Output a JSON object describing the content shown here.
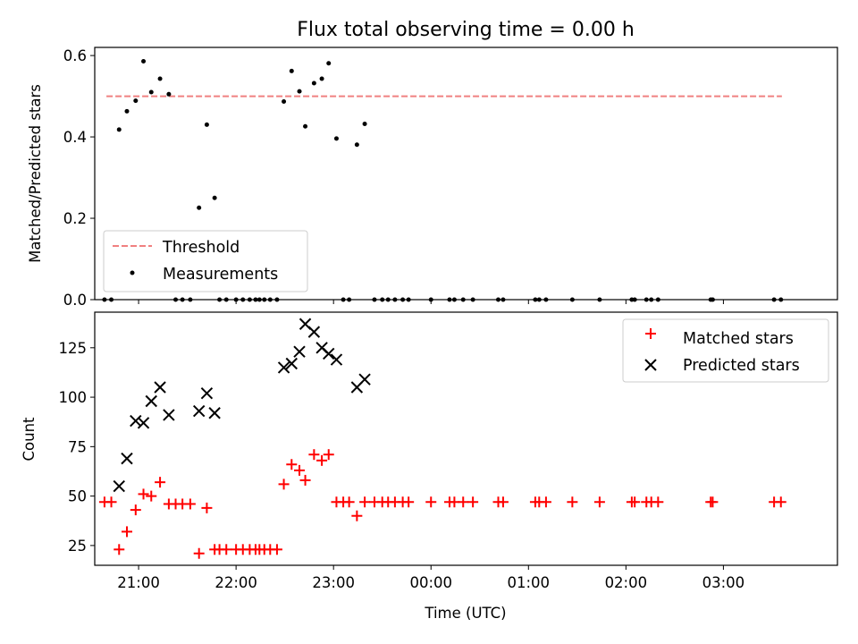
{
  "chart_data": [
    {
      "type": "scatter",
      "title": "Flux total observing time = 0.00 h",
      "xlabel": "",
      "ylabel": "Matched/Predicted stars",
      "ylim": [
        0,
        0.62
      ],
      "yticks": [
        "0.0",
        "0.2",
        "0.4",
        "0.6"
      ],
      "ytick_values": [
        0,
        0.2,
        0.4,
        0.6
      ],
      "xlim": [
        -3.45,
        4.17
      ],
      "xticks": [
        -3,
        -2,
        -1,
        0,
        1,
        2,
        3
      ],
      "grid": false,
      "legend": {
        "placement": "lower-left"
      },
      "threshold": {
        "name": "Threshold",
        "value": 0.5,
        "x_range": [
          -3.33,
          3.6
        ],
        "color": "#f08080"
      },
      "measurements": {
        "name": "Measurements",
        "color": "#000000",
        "x": [
          -3.35,
          -3.28,
          -3.2,
          -3.12,
          -3.03,
          -2.95,
          -2.87,
          -2.78,
          -2.69,
          -2.62,
          -2.55,
          -2.47,
          -2.38,
          -2.3,
          -2.22,
          -2.17,
          -2.1,
          -2.0,
          -1.93,
          -1.86,
          -1.8,
          -1.76,
          -1.71,
          -1.65,
          -1.58,
          -1.51,
          -1.43,
          -1.35,
          -1.29,
          -1.2,
          -1.12,
          -1.05,
          -0.97,
          -0.9,
          -0.84,
          -0.76,
          -0.68,
          -0.58,
          -0.5,
          -0.44,
          -0.37,
          -0.29,
          -0.23,
          0.0,
          0.19,
          0.24,
          0.33,
          0.43,
          0.69,
          0.74,
          1.07,
          1.11,
          1.18,
          1.45,
          1.73,
          2.06,
          2.09,
          2.21,
          2.26,
          2.33,
          2.87,
          2.89,
          3.52,
          3.59
        ],
        "y": [
          0,
          0,
          0.418,
          0.463,
          0.489,
          0.586,
          0.51,
          0.543,
          0.505,
          0,
          0,
          0,
          0.226,
          0.43,
          0.25,
          0,
          0,
          0,
          0,
          0,
          0,
          0,
          0,
          0,
          0,
          0.487,
          0.562,
          0.512,
          0.426,
          0.532,
          0.543,
          0.581,
          0.396,
          0,
          0,
          0.381,
          0.432,
          0,
          0,
          0,
          0,
          0,
          0,
          0,
          0,
          0,
          0,
          0,
          0,
          0,
          0,
          0,
          0,
          0,
          0,
          0,
          0,
          0,
          0,
          0,
          0,
          0,
          0,
          0
        ]
      }
    },
    {
      "type": "scatter",
      "title": "",
      "xlabel": "Time (UTC)",
      "ylabel": "Count",
      "ylim": [
        15,
        143
      ],
      "yticks": [
        "25",
        "50",
        "75",
        "100",
        "125"
      ],
      "ytick_values": [
        25,
        50,
        75,
        100,
        125
      ],
      "xlim": [
        -3.45,
        4.17
      ],
      "xticks": [
        -3,
        -2,
        -1,
        0,
        1,
        2,
        3
      ],
      "xtick_labels": [
        "21:00",
        "22:00",
        "23:00",
        "00:00",
        "01:00",
        "02:00",
        "03:00"
      ],
      "grid": false,
      "legend": {
        "placement": "top-right"
      },
      "series": [
        {
          "name": "Matched stars",
          "marker": "plus",
          "color": "#ff0000",
          "x": [
            -3.35,
            -3.28,
            -3.2,
            -3.12,
            -3.03,
            -2.95,
            -2.87,
            -2.78,
            -2.69,
            -2.62,
            -2.55,
            -2.47,
            -2.38,
            -2.3,
            -2.22,
            -2.17,
            -2.1,
            -2.0,
            -1.93,
            -1.86,
            -1.8,
            -1.76,
            -1.71,
            -1.65,
            -1.58,
            -1.51,
            -1.43,
            -1.35,
            -1.29,
            -1.2,
            -1.12,
            -1.05,
            -0.97,
            -0.9,
            -0.84,
            -0.76,
            -0.68,
            -0.58,
            -0.5,
            -0.44,
            -0.37,
            -0.29,
            -0.23,
            0.0,
            0.19,
            0.24,
            0.33,
            0.43,
            0.69,
            0.74,
            1.07,
            1.11,
            1.18,
            1.45,
            1.73,
            2.06,
            2.09,
            2.21,
            2.26,
            2.33,
            2.87,
            2.89,
            3.52,
            3.59
          ],
          "y": [
            47,
            47,
            23,
            32,
            43,
            51,
            50,
            57,
            46,
            46,
            46,
            46,
            21,
            44,
            23,
            23,
            23,
            23,
            23,
            23,
            23,
            23,
            23,
            23,
            23,
            56,
            66,
            63,
            58,
            71,
            68,
            71,
            47,
            47,
            47,
            40,
            47,
            47,
            47,
            47,
            47,
            47,
            47,
            47,
            47,
            47,
            47,
            47,
            47,
            47,
            47,
            47,
            47,
            47,
            47,
            47,
            47,
            47,
            47,
            47,
            47,
            47,
            47,
            47
          ]
        },
        {
          "name": "Predicted stars",
          "marker": "x",
          "color": "#000000",
          "x": [
            -3.2,
            -3.12,
            -3.03,
            -2.95,
            -2.87,
            -2.78,
            -2.69,
            -2.38,
            -2.3,
            -2.22,
            -1.51,
            -1.43,
            -1.35,
            -1.29,
            -1.2,
            -1.12,
            -1.05,
            -0.97,
            -0.76,
            -0.68
          ],
          "y": [
            55,
            69,
            88,
            87,
            98,
            105,
            91,
            93,
            102,
            92,
            115,
            117,
            123,
            137,
            133,
            125,
            122,
            119,
            105,
            109
          ]
        }
      ]
    }
  ]
}
